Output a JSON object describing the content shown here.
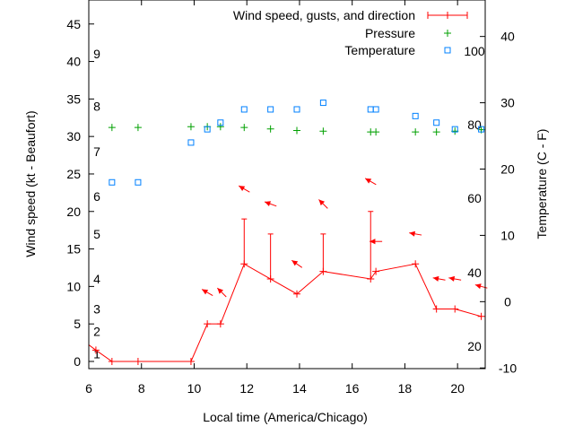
{
  "chart_data": {
    "type": "line",
    "xlabel": "Local time (America/Chicago)",
    "ylabel": "Wind speed (kt - Beaufort)",
    "y2label": "Temperature (C - F)",
    "xlim": [
      6,
      21.05
    ],
    "ylim": [
      -0.96,
      48.2
    ],
    "y2lim": [
      -10.1,
      45.5
    ],
    "x_ticks": [
      6,
      8,
      10,
      12,
      14,
      16,
      18,
      20
    ],
    "y_ticks": [
      0,
      5,
      10,
      15,
      20,
      25,
      30,
      35,
      40,
      45
    ],
    "y2_ticks": [
      -10,
      0,
      10,
      20,
      30,
      40
    ],
    "beaufort_labels": [
      {
        "label": "1",
        "kt": 1
      },
      {
        "label": "2",
        "kt": 4
      },
      {
        "label": "3",
        "kt": 7
      },
      {
        "label": "4",
        "kt": 11
      },
      {
        "label": "5",
        "kt": 17
      },
      {
        "label": "6",
        "kt": 22
      },
      {
        "label": "7",
        "kt": 28
      },
      {
        "label": "8",
        "kt": 34
      },
      {
        "label": "9",
        "kt": 41
      }
    ],
    "fahrenheit_labels": [
      {
        "label": "20",
        "c": -6.7
      },
      {
        "label": "40",
        "c": 4.4
      },
      {
        "label": "60",
        "c": 15.6
      },
      {
        "label": "80",
        "c": 26.7
      },
      {
        "label": "100",
        "c": 37.8
      }
    ],
    "legend": {
      "position": "top-right",
      "entries": [
        "Wind speed, gusts, and direction",
        "Pressure",
        "Temperature"
      ]
    },
    "colors": {
      "wind": "#ff0000",
      "pressure": "#00a000",
      "temperature": "#0080ff"
    },
    "series": [
      {
        "name": "Wind speed, gusts, and direction",
        "x": [
          5.7,
          6.27,
          6.88,
          7.87,
          9.88,
          10.5,
          11.0,
          11.9,
          12.9,
          13.9,
          14.9,
          16.7,
          16.9,
          18.4,
          19.2,
          19.9,
          20.9
        ],
        "y": [
          3,
          1.5,
          0,
          0,
          0,
          5,
          5,
          13,
          11,
          9,
          12,
          11,
          12,
          13,
          7,
          7,
          6
        ],
        "gusts": [
          null,
          null,
          null,
          null,
          null,
          null,
          null,
          19,
          17,
          null,
          17,
          20,
          null,
          null,
          null,
          null,
          null
        ],
        "direction_arrows": [
          {
            "x": 10.5,
            "y": 9.2,
            "toward_deg": 300
          },
          {
            "x": 11.05,
            "y": 9.2,
            "toward_deg": 315
          },
          {
            "x": 11.9,
            "y": 23,
            "toward_deg": 300
          },
          {
            "x": 12.9,
            "y": 21,
            "toward_deg": 290
          },
          {
            "x": 13.9,
            "y": 13,
            "toward_deg": 305
          },
          {
            "x": 14.9,
            "y": 21,
            "toward_deg": 315
          },
          {
            "x": 16.7,
            "y": 24,
            "toward_deg": 300
          },
          {
            "x": 16.9,
            "y": 16,
            "toward_deg": 270
          },
          {
            "x": 18.4,
            "y": 17,
            "toward_deg": 280
          },
          {
            "x": 19.3,
            "y": 11,
            "toward_deg": 280
          },
          {
            "x": 19.9,
            "y": 11,
            "toward_deg": 280
          },
          {
            "x": 20.9,
            "y": 10,
            "toward_deg": 285
          }
        ]
      },
      {
        "name": "Pressure",
        "x": [
          6.88,
          7.87,
          9.88,
          10.5,
          11.0,
          11.9,
          12.9,
          13.9,
          14.9,
          16.7,
          16.9,
          18.4,
          19.2,
          19.9,
          20.9
        ],
        "y": [
          31.2,
          31.2,
          31.3,
          31.3,
          31.3,
          31.2,
          31.0,
          30.8,
          30.7,
          30.6,
          30.6,
          30.6,
          30.6,
          30.7,
          30.9
        ]
      },
      {
        "name": "Temperature",
        "axis": "y2",
        "x": [
          6.88,
          7.87,
          9.88,
          10.5,
          11.0,
          11.9,
          12.9,
          13.9,
          14.9,
          16.7,
          16.9,
          18.4,
          19.2,
          19.9,
          20.9
        ],
        "y": [
          18,
          18,
          24,
          26,
          27,
          29,
          29,
          29,
          30,
          29,
          29,
          28,
          27,
          26,
          26
        ]
      }
    ]
  }
}
